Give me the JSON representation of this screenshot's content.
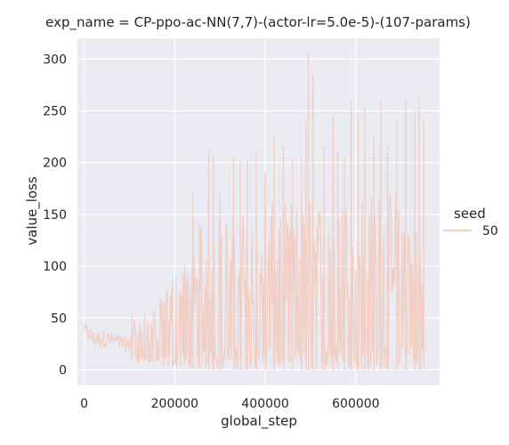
{
  "chart_data": {
    "type": "line",
    "title": "exp_name = CP-ppo-ac-NN(7,7)-(actor-lr=5.0e-5)-(107-params)",
    "xlabel": "global_step",
    "ylabel": "value_loss",
    "xlim": [
      -15000,
      785000
    ],
    "ylim": [
      -15,
      320
    ],
    "xticks": [
      0,
      200000,
      400000,
      600000
    ],
    "xtick_labels": [
      "0",
      "200000",
      "400000",
      "600000"
    ],
    "yticks": [
      0,
      50,
      100,
      150,
      200,
      250,
      300
    ],
    "ytick_labels": [
      "0",
      "50",
      "100",
      "150",
      "200",
      "250",
      "300"
    ],
    "grid": true,
    "background": "#eaeaf2",
    "legend": {
      "title": "seed",
      "placement": "right",
      "entries": [
        "50"
      ]
    },
    "series": [
      {
        "name": "50",
        "color": "#f1cfc5",
        "points_description": "dense noisy trace; low level early, growing envelope later",
        "envelope": [
          {
            "x": 0,
            "low": 28,
            "high": 45
          },
          {
            "x": 20000,
            "low": 15,
            "high": 38
          },
          {
            "x": 60000,
            "low": 15,
            "high": 37
          },
          {
            "x": 100000,
            "low": 10,
            "high": 30
          },
          {
            "x": 110000,
            "low": 8,
            "high": 52
          },
          {
            "x": 150000,
            "low": 5,
            "high": 55
          },
          {
            "x": 190000,
            "low": 3,
            "high": 85
          },
          {
            "x": 230000,
            "low": 2,
            "high": 110
          },
          {
            "x": 260000,
            "low": 1,
            "high": 140
          },
          {
            "x": 300000,
            "low": 0,
            "high": 150
          },
          {
            "x": 400000,
            "low": 0,
            "high": 160
          },
          {
            "x": 500000,
            "low": 0,
            "high": 165
          },
          {
            "x": 600000,
            "low": 0,
            "high": 170
          },
          {
            "x": 700000,
            "low": 0,
            "high": 175
          },
          {
            "x": 750000,
            "low": 0,
            "high": 130
          }
        ],
        "spikes": [
          {
            "x": 105000,
            "y": 52
          },
          {
            "x": 175000,
            "y": 62
          },
          {
            "x": 195000,
            "y": 85
          },
          {
            "x": 240000,
            "y": 170
          },
          {
            "x": 255000,
            "y": 140
          },
          {
            "x": 275000,
            "y": 212
          },
          {
            "x": 285000,
            "y": 205
          },
          {
            "x": 300000,
            "y": 170
          },
          {
            "x": 330000,
            "y": 205
          },
          {
            "x": 345000,
            "y": 200
          },
          {
            "x": 360000,
            "y": 203
          },
          {
            "x": 380000,
            "y": 210
          },
          {
            "x": 400000,
            "y": 190
          },
          {
            "x": 420000,
            "y": 225
          },
          {
            "x": 440000,
            "y": 215
          },
          {
            "x": 460000,
            "y": 202
          },
          {
            "x": 480000,
            "y": 205
          },
          {
            "x": 490000,
            "y": 240
          },
          {
            "x": 495000,
            "y": 305
          },
          {
            "x": 505000,
            "y": 285
          },
          {
            "x": 530000,
            "y": 215
          },
          {
            "x": 550000,
            "y": 245
          },
          {
            "x": 560000,
            "y": 210
          },
          {
            "x": 575000,
            "y": 205
          },
          {
            "x": 590000,
            "y": 255
          },
          {
            "x": 605000,
            "y": 245
          },
          {
            "x": 620000,
            "y": 255
          },
          {
            "x": 640000,
            "y": 225
          },
          {
            "x": 655000,
            "y": 260
          },
          {
            "x": 670000,
            "y": 215
          },
          {
            "x": 690000,
            "y": 240
          },
          {
            "x": 710000,
            "y": 260
          },
          {
            "x": 730000,
            "y": 250
          },
          {
            "x": 740000,
            "y": 262
          },
          {
            "x": 750000,
            "y": 240
          }
        ]
      }
    ]
  }
}
